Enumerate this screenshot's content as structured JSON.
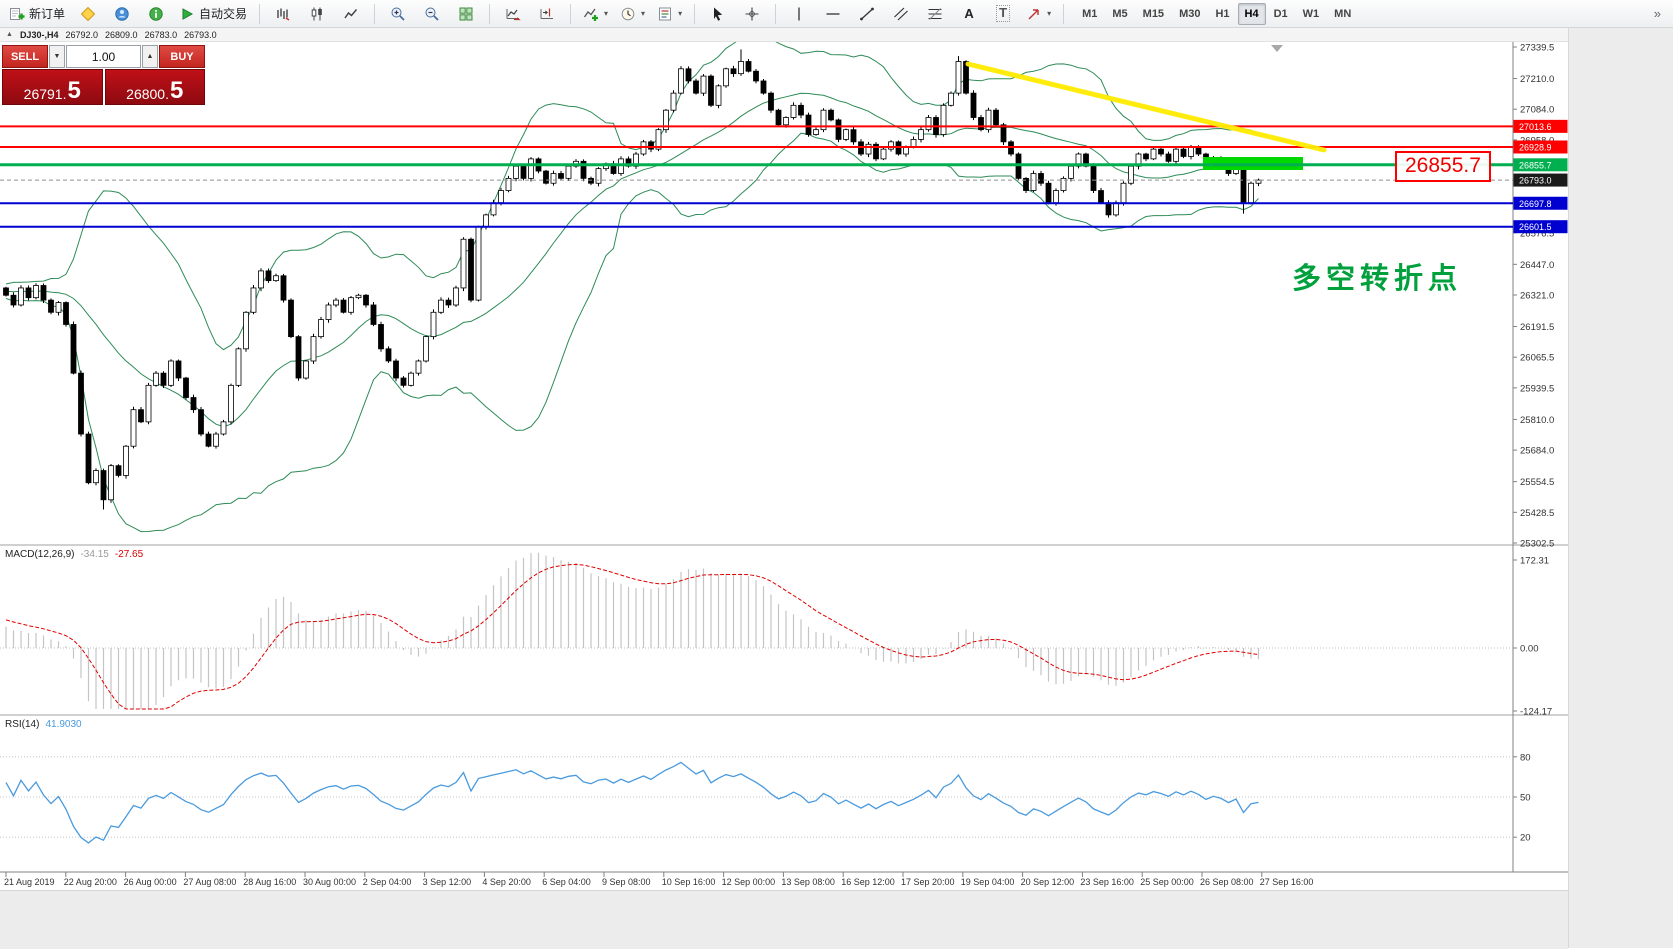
{
  "toolbar": {
    "new_order": "新订单",
    "autotrading": "自动交易",
    "text_tool": "A",
    "label_tool": "T",
    "overflow_glyph": "»",
    "timeframes": [
      "M1",
      "M5",
      "M15",
      "M30",
      "H1",
      "H4",
      "D1",
      "W1",
      "MN"
    ],
    "active_timeframe": "H4"
  },
  "chart_header": {
    "window_glyph": "▲",
    "symbol": "DJ30-,H4",
    "open": "26792.0",
    "high": "26809.0",
    "low": "26783.0",
    "close": "26793.0"
  },
  "trade_panel": {
    "sell_label": "SELL",
    "buy_label": "BUY",
    "volume": "1.00",
    "sell_price": "26791.5",
    "buy_price": "26800.5",
    "spin_down": "▼",
    "spin_up": "▲"
  },
  "indicators": {
    "macd": {
      "label": "MACD(12,26,9)",
      "value_main": "-34.15",
      "value_signal": "-27.65",
      "ticks": [
        "172.31",
        "0.00",
        "-124.17"
      ]
    },
    "rsi": {
      "label": "RSI(14)",
      "value": "41.9030",
      "levels": [
        80,
        50,
        20
      ]
    }
  },
  "annotations": {
    "price_callout": "26855.7",
    "note_text": "多空转折点",
    "trendline_color": "#ffec00",
    "zone_color": "#00d800"
  },
  "chart_data": {
    "type": "candlestick",
    "symbol": "DJ30-",
    "timeframe": "H4",
    "y_axis": {
      "max": 27339.5,
      "min": 25302.5
    },
    "scale_ticks": [
      27339.5,
      27210.0,
      27084.0,
      26958.0,
      26576.5,
      26447.0,
      26321.0,
      26191.5,
      26065.5,
      25939.5,
      25810.0,
      25684.0,
      25554.5,
      25428.5,
      25302.5
    ],
    "price_lines": [
      {
        "price": 27013.6,
        "color": "#ff0000",
        "width": 2,
        "label": "27013.6"
      },
      {
        "price": 26928.9,
        "color": "#ff0000",
        "width": 2,
        "label": "26928.9"
      },
      {
        "price": 26855.7,
        "color": "#00b050",
        "width": 3,
        "label": "26855.7"
      },
      {
        "price": 26793.0,
        "color": "#909090",
        "width": 1,
        "label": "26793.0",
        "style": "dash",
        "label_bg": "#1a1a1a"
      },
      {
        "price": 26697.8,
        "color": "#0000d0",
        "width": 2,
        "label": "26697.8"
      },
      {
        "price": 26601.5,
        "color": "#0000d0",
        "width": 2,
        "label": "26601.5"
      }
    ],
    "time_labels": [
      "21 Aug 2019",
      "22 Aug 20:00",
      "26 Aug 00:00",
      "27 Aug 08:00",
      "28 Aug 16:00",
      "30 Aug 00:00",
      "2 Sep 04:00",
      "3 Sep 12:00",
      "4 Sep 20:00",
      "6 Sep 04:00",
      "9 Sep 08:00",
      "10 Sep 16:00",
      "12 Sep 00:00",
      "13 Sep 08:00",
      "16 Sep 12:00",
      "17 Sep 20:00",
      "19 Sep 04:00",
      "20 Sep 12:00",
      "23 Sep 16:00",
      "25 Sep 00:00",
      "26 Sep 08:00",
      "27 Sep 16:00"
    ],
    "lead_in_closes": [
      25900,
      25920,
      25950,
      25980,
      26000,
      26020,
      26050,
      26080,
      26100,
      26120,
      26150,
      26170,
      26200,
      26220,
      26250,
      26260,
      26280,
      26300,
      26290,
      26310,
      26300,
      26320,
      26310,
      26330,
      26320,
      26310,
      26330,
      26340,
      26330,
      26350,
      26340,
      26330,
      26350,
      26340,
      26360,
      26350,
      26340,
      26350,
      26360,
      26350
    ],
    "closes": [
      26320,
      26280,
      26350,
      26310,
      26360,
      26300,
      26250,
      26290,
      26200,
      26000,
      25750,
      25550,
      25600,
      25480,
      25620,
      25580,
      25700,
      25850,
      25800,
      25950,
      26000,
      25950,
      26050,
      25980,
      25900,
      25850,
      25750,
      25700,
      25750,
      25800,
      25950,
      26100,
      26250,
      26350,
      26420,
      26380,
      26400,
      26300,
      26150,
      25980,
      26050,
      26150,
      26220,
      26280,
      26300,
      26250,
      26310,
      26320,
      26280,
      26200,
      26100,
      26050,
      25980,
      25950,
      26000,
      26050,
      26150,
      26250,
      26300,
      26280,
      26350,
      26550,
      26300,
      26600,
      26650,
      26700,
      26750,
      26800,
      26850,
      26800,
      26880,
      26830,
      26780,
      26820,
      26800,
      26850,
      26870,
      26800,
      26780,
      26840,
      26860,
      26820,
      26880,
      26850,
      26900,
      26950,
      26920,
      27000,
      27080,
      27150,
      27250,
      27200,
      27150,
      27220,
      27100,
      27180,
      27250,
      27230,
      27280,
      27240,
      27200,
      27150,
      27080,
      27020,
      27050,
      27100,
      27060,
      26980,
      27000,
      27080,
      27040,
      26960,
      27000,
      26950,
      26900,
      26940,
      26880,
      26920,
      26950,
      26900,
      26930,
      26960,
      27000,
      27050,
      26980,
      27100,
      27150,
      27280,
      27150,
      27050,
      27000,
      27080,
      27020,
      26950,
      26900,
      26800,
      26750,
      26820,
      26780,
      26700,
      26750,
      26800,
      26850,
      26900,
      26850,
      26750,
      26700,
      26650,
      26700,
      26780,
      26850,
      26900,
      26880,
      26920,
      26900,
      26870,
      26920,
      26890,
      26930,
      26900,
      26850,
      26880,
      26860,
      26820,
      26850,
      26700,
      26780,
      26793
    ],
    "wick_overrides": {
      "13": {
        "low": 25440
      },
      "98": {
        "high": 27330
      },
      "127": {
        "high": 27302
      },
      "165": {
        "low": 26655
      }
    },
    "bollinger": {
      "period": 20,
      "deviation": 2
    },
    "macd_params": [
      12,
      26,
      9
    ],
    "rsi_period": 14
  }
}
